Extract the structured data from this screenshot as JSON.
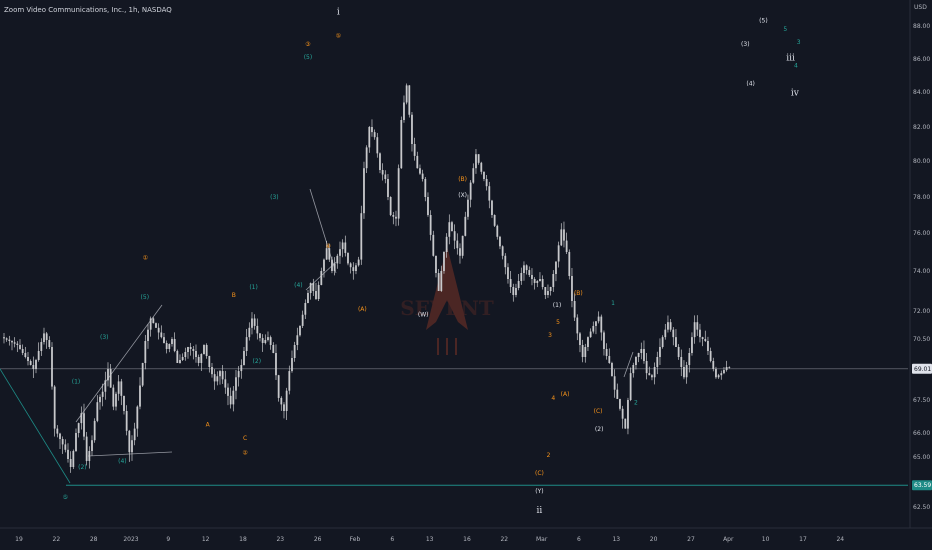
{
  "header": {
    "title": "Zoom Video Communications, Inc., 1h, NASDAQ"
  },
  "watermark": {
    "text": "SEVENT"
  },
  "colors": {
    "background": "#131722",
    "candle": "#c8c9cc",
    "wave_cyan": "#26a69a",
    "wave_orange": "#f7931a",
    "wave_white": "#e0e3eb",
    "support_line": "#1e8b86",
    "current_price_tag": "#e0e3eb",
    "support_price_tag": "#1e8b86",
    "watermark": "#7a3327"
  },
  "chart_data": {
    "type": "candlestick",
    "y_axis": {
      "unit_label": "USD",
      "range": [
        61.2,
        89.2
      ],
      "ticks": [
        "62.50",
        "65.00",
        "66.00",
        "67.50",
        "69.00",
        "70.50",
        "72.00",
        "74.00",
        "76.00",
        "78.00",
        "80.00",
        "82.00",
        "84.00",
        "86.00",
        "88.00"
      ],
      "tick_values": [
        62.5,
        65.0,
        66.0,
        67.5,
        69.0,
        70.5,
        72.0,
        74.0,
        76.0,
        78.0,
        80.0,
        82.0,
        84.0,
        86.0,
        88.0
      ]
    },
    "x_axis": {
      "ticks": [
        "19",
        "22",
        "28",
        "2023",
        "9",
        "12",
        "18",
        "23",
        "26",
        "Feb",
        "6",
        "13",
        "16",
        "22",
        "Mar",
        "6",
        "13",
        "20",
        "27",
        "Apr",
        "10",
        "17",
        "24"
      ],
      "tick_index": [
        0,
        7,
        14,
        21,
        28,
        35,
        42,
        49,
        56,
        63,
        70,
        77,
        84,
        91,
        98,
        105,
        112,
        119,
        126,
        133,
        140,
        147,
        154
      ]
    },
    "price_path": {
      "description_index_range": [
        0,
        126
      ],
      "points": [
        [
          0,
          70.6
        ],
        [
          3,
          70.2
        ],
        [
          6,
          69.0
        ],
        [
          8,
          70.8
        ],
        [
          9,
          70.1
        ],
        [
          10,
          66.2
        ],
        [
          12,
          65.3
        ],
        [
          13,
          64.5
        ],
        [
          14,
          66.0
        ],
        [
          15,
          66.9
        ],
        [
          16,
          64.8
        ],
        [
          17,
          65.7
        ],
        [
          18,
          67.4
        ],
        [
          19,
          67.9
        ],
        [
          20,
          69.0
        ],
        [
          21,
          67.2
        ],
        [
          22,
          68.4
        ],
        [
          23,
          67.0
        ],
        [
          24,
          65.2
        ],
        [
          25,
          66.2
        ],
        [
          26,
          68.2
        ],
        [
          27,
          70.4
        ],
        [
          28,
          71.6
        ],
        [
          29,
          71.1
        ],
        [
          30,
          70.6
        ],
        [
          31,
          70.0
        ],
        [
          32,
          70.5
        ],
        [
          33,
          69.3
        ],
        [
          34,
          69.6
        ],
        [
          35,
          70.1
        ],
        [
          36,
          69.9
        ],
        [
          37,
          69.3
        ],
        [
          38,
          70.2
        ],
        [
          39,
          69.1
        ],
        [
          40,
          68.4
        ],
        [
          41,
          68.9
        ],
        [
          42,
          68.1
        ],
        [
          43,
          67.3
        ],
        [
          44,
          68.6
        ],
        [
          45,
          69.2
        ],
        [
          46,
          70.6
        ],
        [
          47,
          71.6
        ],
        [
          48,
          70.8
        ],
        [
          49,
          70.3
        ],
        [
          50,
          70.6
        ],
        [
          51,
          69.8
        ],
        [
          52,
          67.6
        ],
        [
          53,
          67.0
        ],
        [
          54,
          68.9
        ],
        [
          55,
          70.2
        ],
        [
          56,
          71.2
        ],
        [
          57,
          72.4
        ],
        [
          58,
          73.4
        ],
        [
          59,
          72.6
        ],
        [
          60,
          74.0
        ],
        [
          61,
          75.2
        ],
        [
          62,
          74.0
        ],
        [
          63,
          74.8
        ],
        [
          64,
          75.5
        ],
        [
          65,
          74.4
        ],
        [
          66,
          74.0
        ],
        [
          67,
          74.6
        ],
        [
          68,
          79.6
        ],
        [
          69,
          82.0
        ],
        [
          70,
          81.4
        ],
        [
          71,
          79.5
        ],
        [
          72,
          79.0
        ],
        [
          73,
          77.0
        ],
        [
          74,
          76.8
        ],
        [
          75,
          82.4
        ],
        [
          76,
          84.4
        ],
        [
          77,
          81.0
        ],
        [
          78,
          79.6
        ],
        [
          79,
          79.0
        ],
        [
          80,
          77.0
        ],
        [
          81,
          74.8
        ],
        [
          82,
          73.0
        ],
        [
          83,
          75.0
        ],
        [
          84,
          76.6
        ],
        [
          85,
          75.6
        ],
        [
          86,
          74.8
        ],
        [
          87,
          76.9
        ],
        [
          88,
          78.8
        ],
        [
          89,
          80.4
        ],
        [
          90,
          79.4
        ],
        [
          91,
          78.6
        ],
        [
          92,
          77.0
        ],
        [
          93,
          75.8
        ],
        [
          94,
          74.8
        ],
        [
          95,
          73.6
        ],
        [
          96,
          72.8
        ],
        [
          97,
          73.5
        ],
        [
          98,
          74.3
        ],
        [
          99,
          73.8
        ],
        [
          100,
          73.4
        ],
        [
          101,
          73.6
        ],
        [
          102,
          72.8
        ],
        [
          103,
          73.2
        ],
        [
          104,
          74.5
        ],
        [
          105,
          76.2
        ],
        [
          106,
          75.0
        ],
        [
          107,
          72.5
        ],
        [
          108,
          70.8
        ],
        [
          109,
          69.6
        ],
        [
          110,
          70.6
        ],
        [
          111,
          71.2
        ],
        [
          112,
          71.7
        ],
        [
          113,
          70.0
        ],
        [
          114,
          69.3
        ],
        [
          115,
          68.0
        ],
        [
          116,
          67.1
        ],
        [
          117,
          66.2
        ],
        [
          118,
          68.8
        ],
        [
          119,
          69.6
        ],
        [
          120,
          70.0
        ],
        [
          121,
          68.8
        ],
        [
          122,
          68.6
        ],
        [
          123,
          69.6
        ],
        [
          124,
          70.6
        ],
        [
          125,
          71.4
        ],
        [
          126,
          70.6
        ],
        [
          127,
          69.6
        ],
        [
          128,
          68.6
        ],
        [
          129,
          69.8
        ],
        [
          130,
          71.4
        ],
        [
          131,
          70.6
        ],
        [
          132,
          70.4
        ],
        [
          133,
          69.4
        ],
        [
          134,
          68.6
        ],
        [
          135,
          68.8
        ],
        [
          136,
          69.1
        ]
      ]
    },
    "current_price": {
      "label": "69.01",
      "value": 69.01
    },
    "support_level": {
      "label": "63.59",
      "value": 63.59
    },
    "wave_labels": [
      {
        "text": "①",
        "color": "orange",
        "x_index": 26.5,
        "price": 74.6
      },
      {
        "text": "(5)",
        "color": "cyan",
        "x_index": 26.4,
        "price": 72.6
      },
      {
        "text": "(3)",
        "color": "cyan",
        "x_index": 18.8,
        "price": 70.5
      },
      {
        "text": "(1)",
        "color": "cyan",
        "x_index": 13.5,
        "price": 68.3
      },
      {
        "text": "(2)",
        "color": "cyan",
        "x_index": 14.7,
        "price": 64.4
      },
      {
        "text": "(4)",
        "color": "cyan",
        "x_index": 22.2,
        "price": 64.7
      },
      {
        "text": "⑤",
        "color": "cyan",
        "x_index": 11.5,
        "price": 62.9
      },
      {
        "text": "A",
        "color": "orange",
        "x_index": 38.2,
        "price": 66.3
      },
      {
        "text": "B",
        "color": "orange",
        "x_index": 43.1,
        "price": 72.7
      },
      {
        "text": "C",
        "color": "orange",
        "x_index": 45.2,
        "price": 65.7
      },
      {
        "text": "②",
        "color": "orange",
        "x_index": 45.2,
        "price": 65.1
      },
      {
        "text": "(1)",
        "color": "cyan",
        "x_index": 46.8,
        "price": 73.1
      },
      {
        "text": "(2)",
        "color": "cyan",
        "x_index": 47.4,
        "price": 69.3
      },
      {
        "text": "(3)",
        "color": "cyan",
        "x_index": 50.7,
        "price": 77.9
      },
      {
        "text": "(4)",
        "color": "cyan",
        "x_index": 55.2,
        "price": 73.2
      },
      {
        "text": "③",
        "color": "orange",
        "x_index": 57.0,
        "price": 86.8
      },
      {
        "text": "(5)",
        "color": "cyan",
        "x_index": 57.0,
        "price": 86.0
      },
      {
        "text": "i",
        "color": "white",
        "x_index": 62.7,
        "price": 88.7
      },
      {
        "text": "⑤",
        "color": "orange",
        "x_index": 62.7,
        "price": 87.3
      },
      {
        "text": "④",
        "color": "orange",
        "x_index": 60.8,
        "price": 75.2
      },
      {
        "text": "(A)",
        "color": "orange",
        "x_index": 67.2,
        "price": 72.0
      },
      {
        "text": "(X)",
        "color": "white",
        "x_index": 86.0,
        "price": 78.0
      },
      {
        "text": "(B)",
        "color": "orange",
        "x_index": 86.0,
        "price": 78.9
      },
      {
        "text": "(W)",
        "color": "white",
        "x_index": 78.6,
        "price": 71.7
      },
      {
        "text": "(C)",
        "color": "orange",
        "x_index": 100.4,
        "price": 64.1
      },
      {
        "text": "(Y)",
        "color": "white",
        "x_index": 100.4,
        "price": 63.2
      },
      {
        "text": "ii",
        "color": "white",
        "x_index": 100.4,
        "price": 62.2
      },
      {
        "text": "2",
        "color": "orange",
        "x_index": 102.1,
        "price": 65.0
      },
      {
        "text": "(1)",
        "color": "white",
        "x_index": 103.7,
        "price": 72.2
      },
      {
        "text": "5",
        "color": "orange",
        "x_index": 103.9,
        "price": 71.3
      },
      {
        "text": "3",
        "color": "orange",
        "x_index": 102.4,
        "price": 70.6
      },
      {
        "text": "4",
        "color": "orange",
        "x_index": 103.0,
        "price": 67.5
      },
      {
        "text": "(A)",
        "color": "orange",
        "x_index": 105.2,
        "price": 67.7
      },
      {
        "text": "(B)",
        "color": "orange",
        "x_index": 107.7,
        "price": 72.8
      },
      {
        "text": "(C)",
        "color": "orange",
        "x_index": 111.4,
        "price": 66.9
      },
      {
        "text": "(2)",
        "color": "white",
        "x_index": 111.6,
        "price": 66.1
      },
      {
        "text": "1",
        "color": "cyan",
        "x_index": 114.2,
        "price": 72.3
      },
      {
        "text": "2",
        "color": "cyan",
        "x_index": 118.5,
        "price": 67.3
      },
      {
        "text": "(5)",
        "color": "white",
        "x_index": 142.4,
        "price": 88.2
      },
      {
        "text": "(3)",
        "color": "white",
        "x_index": 139.0,
        "price": 86.8
      },
      {
        "text": "5",
        "color": "cyan",
        "x_index": 146.5,
        "price": 87.7
      },
      {
        "text": "3",
        "color": "cyan",
        "x_index": 149.0,
        "price": 86.9
      },
      {
        "text": "iii",
        "color": "white",
        "x_index": 147.5,
        "price": 85.9
      },
      {
        "text": "4",
        "color": "cyan",
        "x_index": 148.5,
        "price": 85.5
      },
      {
        "text": "(4)",
        "color": "white",
        "x_index": 140.0,
        "price": 84.4
      },
      {
        "text": "iv",
        "color": "white",
        "x_index": 148.3,
        "price": 83.8
      }
    ]
  }
}
